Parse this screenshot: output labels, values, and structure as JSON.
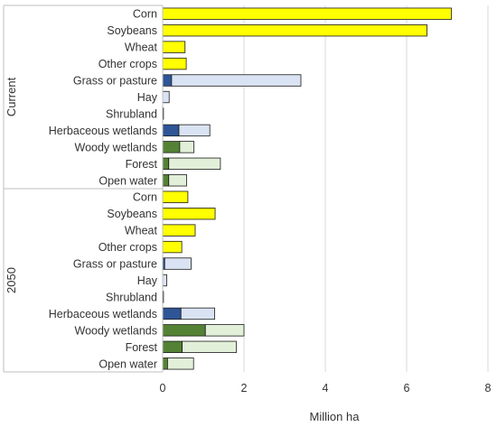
{
  "chart_data": {
    "type": "bar",
    "orientation": "horizontal",
    "stacked": true,
    "xlabel": "Million ha",
    "ylabel": "",
    "xlim": [
      0,
      8
    ],
    "xticks": [
      0,
      2,
      4,
      6,
      8
    ],
    "grid": "vertical",
    "legend": "none",
    "groups": [
      {
        "name": "Current",
        "rows": [
          {
            "category": "Corn",
            "segments": [
              {
                "value": 7.1,
                "color": "#ffff00"
              }
            ]
          },
          {
            "category": "Soybeans",
            "segments": [
              {
                "value": 6.5,
                "color": "#ffff00"
              }
            ]
          },
          {
            "category": "Wheat",
            "segments": [
              {
                "value": 0.55,
                "color": "#ffff00"
              }
            ]
          },
          {
            "category": "Other crops",
            "segments": [
              {
                "value": 0.58,
                "color": "#ffff00"
              }
            ]
          },
          {
            "category": "Grass or pasture",
            "segments": [
              {
                "value": 0.22,
                "color": "#2f5597"
              },
              {
                "value": 3.18,
                "color": "#dae3f3"
              }
            ]
          },
          {
            "category": "Hay",
            "segments": [
              {
                "value": 0.16,
                "color": "#dae3f3"
              }
            ]
          },
          {
            "category": "Shrubland",
            "segments": [
              {
                "value": 0.02,
                "color": "#dae3f3"
              }
            ]
          },
          {
            "category": "Herbaceous wetlands",
            "segments": [
              {
                "value": 0.4,
                "color": "#2f5597"
              },
              {
                "value": 0.76,
                "color": "#dae3f3"
              }
            ]
          },
          {
            "category": "Woody wetlands",
            "segments": [
              {
                "value": 0.42,
                "color": "#548235"
              },
              {
                "value": 0.35,
                "color": "#e2f0d9"
              }
            ]
          },
          {
            "category": "Forest",
            "segments": [
              {
                "value": 0.15,
                "color": "#548235"
              },
              {
                "value": 1.27,
                "color": "#e2f0d9"
              }
            ]
          },
          {
            "category": "Open water",
            "segments": [
              {
                "value": 0.15,
                "color": "#548235"
              },
              {
                "value": 0.44,
                "color": "#e2f0d9"
              }
            ]
          }
        ]
      },
      {
        "name": "2050",
        "rows": [
          {
            "category": "Corn",
            "segments": [
              {
                "value": 0.62,
                "color": "#ffff00"
              }
            ]
          },
          {
            "category": "Soybeans",
            "segments": [
              {
                "value": 1.29,
                "color": "#ffff00"
              }
            ]
          },
          {
            "category": "Wheat",
            "segments": [
              {
                "value": 0.8,
                "color": "#ffff00"
              }
            ]
          },
          {
            "category": "Other crops",
            "segments": [
              {
                "value": 0.47,
                "color": "#ffff00"
              }
            ]
          },
          {
            "category": "Grass or pasture",
            "segments": [
              {
                "value": 0.05,
                "color": "#2f5597"
              },
              {
                "value": 0.65,
                "color": "#dae3f3"
              }
            ]
          },
          {
            "category": "Hay",
            "segments": [
              {
                "value": 0.1,
                "color": "#dae3f3"
              }
            ]
          },
          {
            "category": "Shrubland",
            "segments": [
              {
                "value": 0.02,
                "color": "#dae3f3"
              }
            ]
          },
          {
            "category": "Herbaceous wetlands",
            "segments": [
              {
                "value": 0.45,
                "color": "#2f5597"
              },
              {
                "value": 0.83,
                "color": "#dae3f3"
              }
            ]
          },
          {
            "category": "Woody wetlands",
            "segments": [
              {
                "value": 1.05,
                "color": "#548235"
              },
              {
                "value": 0.95,
                "color": "#e2f0d9"
              }
            ]
          },
          {
            "category": "Forest",
            "segments": [
              {
                "value": 0.48,
                "color": "#548235"
              },
              {
                "value": 1.33,
                "color": "#e2f0d9"
              }
            ]
          },
          {
            "category": "Open water",
            "segments": [
              {
                "value": 0.12,
                "color": "#548235"
              },
              {
                "value": 0.64,
                "color": "#e2f0d9"
              }
            ]
          }
        ]
      }
    ]
  }
}
